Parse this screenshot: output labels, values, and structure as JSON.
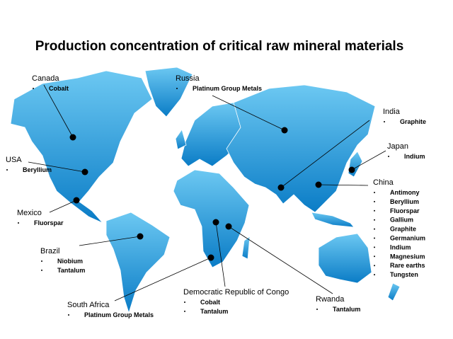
{
  "title": "Production concentration of critical raw mineral materials",
  "countries": [
    {
      "name": "Canada",
      "materials": [
        "Cobalt"
      ]
    },
    {
      "name": "Russia",
      "materials": [
        "Platinum Group Metals"
      ]
    },
    {
      "name": "India",
      "materials": [
        "Graphite"
      ]
    },
    {
      "name": "Japan",
      "materials": [
        "Indium"
      ]
    },
    {
      "name": "USA",
      "materials": [
        "Beryllium"
      ]
    },
    {
      "name": "China",
      "materials": [
        "Antimony",
        "Beryllium",
        "Fluorspar",
        "Gallium",
        "Graphite",
        "Germanium",
        "Indium",
        "Magnesium",
        "Rare earths",
        "Tungsten"
      ]
    },
    {
      "name": "Mexico",
      "materials": [
        "Fluorspar"
      ]
    },
    {
      "name": "Brazil",
      "materials": [
        "Niobium",
        "Tantalum"
      ]
    },
    {
      "name": "South Africa",
      "materials": [
        "Platinum Group Metals"
      ]
    },
    {
      "name": "Democratic Republic of Congo",
      "materials": [
        "Cobalt",
        "Tantalum"
      ]
    },
    {
      "name": "Rwanda",
      "materials": [
        "Tantalum"
      ]
    }
  ]
}
